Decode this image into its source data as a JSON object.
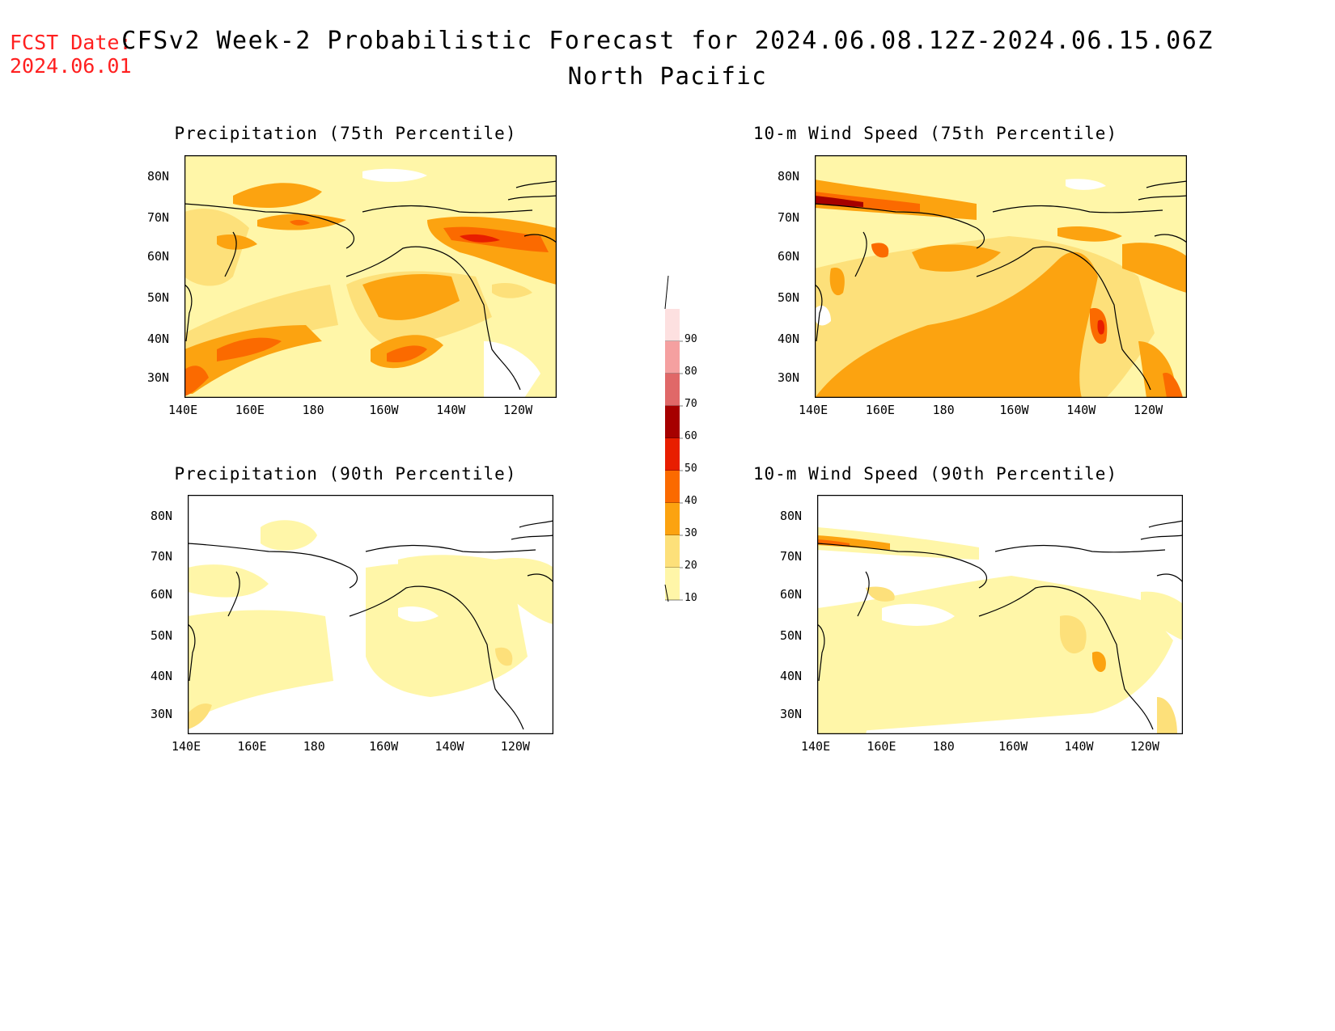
{
  "header": {
    "fcst_label": "FCST Date:",
    "fcst_date": "2024.06.01",
    "title": "CFSv2 Week-2 Probabilistic Forecast for 2024.06.08.12Z-2024.06.15.06Z",
    "region": "North Pacific"
  },
  "panels": [
    {
      "title": "Precipitation (75th Percentile)"
    },
    {
      "title": "10-m Wind Speed (75th Percentile)"
    },
    {
      "title": "Precipitation (90th Percentile)"
    },
    {
      "title": "10-m Wind Speed (90th Percentile)"
    }
  ],
  "axes": {
    "lat_labels": [
      "80N",
      "70N",
      "60N",
      "50N",
      "40N",
      "30N"
    ],
    "lon_labels": [
      "140E",
      "160E",
      "180",
      "160W",
      "140W",
      "120W"
    ]
  },
  "colorbar": {
    "levels": [
      "10",
      "20",
      "30",
      "40",
      "50",
      "60",
      "70",
      "80",
      "90"
    ],
    "colors": [
      "#fff6a8",
      "#fde07a",
      "#fca310",
      "#fb6a00",
      "#e81e00",
      "#a60000",
      "#e06868",
      "#f5a0a0",
      "#fde0e0"
    ]
  }
}
